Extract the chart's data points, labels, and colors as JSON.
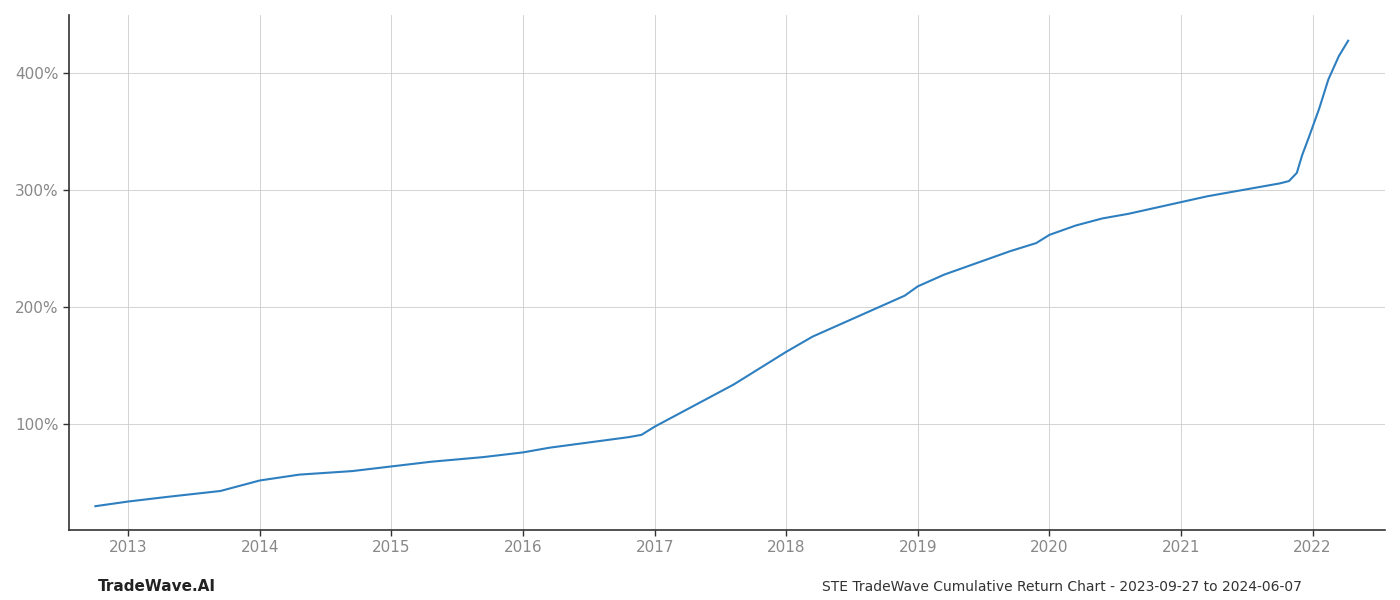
{
  "title": "STE TradeWave Cumulative Return Chart - 2023-09-27 to 2024-06-07",
  "watermark": "TradeWave.AI",
  "line_color": "#2e7fc0",
  "background_color": "#ffffff",
  "grid_color": "#cccccc",
  "x_years": [
    2013,
    2014,
    2015,
    2016,
    2017,
    2018,
    2019,
    2020,
    2021,
    2022
  ],
  "data_points": [
    [
      2012.75,
      30
    ],
    [
      2013.0,
      34
    ],
    [
      2013.3,
      38
    ],
    [
      2013.7,
      43
    ],
    [
      2014.0,
      52
    ],
    [
      2014.3,
      57
    ],
    [
      2014.7,
      60
    ],
    [
      2015.0,
      64
    ],
    [
      2015.3,
      68
    ],
    [
      2015.7,
      72
    ],
    [
      2016.0,
      76
    ],
    [
      2016.2,
      80
    ],
    [
      2016.4,
      83
    ],
    [
      2016.6,
      86
    ],
    [
      2016.8,
      89
    ],
    [
      2016.9,
      91
    ],
    [
      2017.0,
      98
    ],
    [
      2017.2,
      110
    ],
    [
      2017.4,
      122
    ],
    [
      2017.6,
      134
    ],
    [
      2017.8,
      148
    ],
    [
      2018.0,
      162
    ],
    [
      2018.2,
      175
    ],
    [
      2018.5,
      190
    ],
    [
      2018.7,
      200
    ],
    [
      2018.9,
      210
    ],
    [
      2019.0,
      218
    ],
    [
      2019.2,
      228
    ],
    [
      2019.5,
      240
    ],
    [
      2019.7,
      248
    ],
    [
      2019.9,
      255
    ],
    [
      2020.0,
      262
    ],
    [
      2020.2,
      270
    ],
    [
      2020.4,
      276
    ],
    [
      2020.6,
      280
    ],
    [
      2020.8,
      285
    ],
    [
      2021.0,
      290
    ],
    [
      2021.2,
      295
    ],
    [
      2021.4,
      299
    ],
    [
      2021.55,
      302
    ],
    [
      2021.65,
      304
    ],
    [
      2021.75,
      306
    ],
    [
      2021.82,
      308
    ],
    [
      2021.88,
      315
    ],
    [
      2021.92,
      330
    ],
    [
      2021.97,
      345
    ],
    [
      2022.05,
      370
    ],
    [
      2022.12,
      395
    ],
    [
      2022.2,
      415
    ],
    [
      2022.27,
      428
    ]
  ],
  "ylim": [
    10,
    450
  ],
  "yticks": [
    100,
    200,
    300,
    400
  ],
  "ytick_labels": [
    "100%",
    "200%",
    "300%",
    "400%"
  ],
  "xlim": [
    2012.55,
    2022.55
  ],
  "title_fontsize": 10,
  "watermark_fontsize": 11,
  "tick_fontsize": 11,
  "line_width": 1.5
}
